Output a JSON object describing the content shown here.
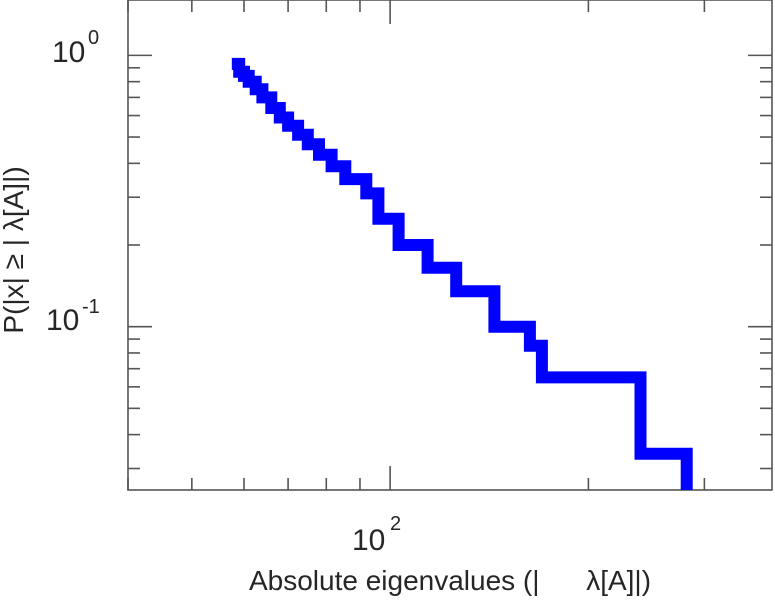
{
  "chart_data": {
    "type": "line",
    "xlabel": "Absolute eigenvalues (|      λ[A]|)",
    "ylabel": "P(|x|  ≥ | λ[A]|)",
    "x_scale": "log",
    "y_scale": "log",
    "xlim": [
      40,
      380
    ],
    "ylim": [
      0.025,
      1.6
    ],
    "grid": false,
    "x_ticks": [
      {
        "base": "10",
        "exp": "2",
        "value": 100
      }
    ],
    "y_ticks": [
      {
        "base": "10",
        "exp": "0",
        "value": 1
      },
      {
        "base": "10",
        "exp": "-1",
        "value": 0.1
      }
    ],
    "series": [
      {
        "color": "#0000ff",
        "step": true,
        "x": [
          57.5,
          59,
          60,
          61,
          62.5,
          64,
          66,
          68,
          70,
          72.5,
          75,
          78,
          81.5,
          85.5,
          92,
          96,
          103,
          114,
          126,
          144,
          163,
          170,
          240,
          282,
          282
        ],
        "y": [
          0.93,
          0.87,
          0.84,
          0.8,
          0.75,
          0.7,
          0.64,
          0.59,
          0.55,
          0.51,
          0.47,
          0.43,
          0.39,
          0.35,
          0.31,
          0.25,
          0.2,
          0.165,
          0.135,
          0.1,
          0.085,
          0.065,
          0.034,
          0.034,
          0.025
        ]
      }
    ]
  }
}
